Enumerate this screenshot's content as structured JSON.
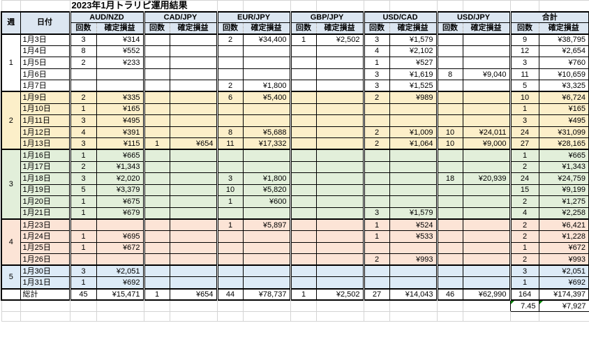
{
  "title": "2023年1月トラリピ運用結果",
  "columns": {
    "week": "週",
    "date": "日付",
    "count": "回数",
    "profit": "確定損益",
    "total": "合計",
    "pairs": [
      "AUD/NZD",
      "CAD/JPY",
      "EUR/JPY",
      "GBP/JPY",
      "USD/CAD",
      "USD/JPY"
    ]
  },
  "colors": {
    "header_fill": "#DCE6F1",
    "gridline": "#D4D4D4",
    "note_triangle": "#008000",
    "week_fills": [
      "#FFFFFF",
      "#FCEFC9",
      "#E2EFDA",
      "#FCE4D6",
      "#DDEBF7"
    ]
  },
  "weeks": [
    {
      "label": "1",
      "color": "#FFFFFF",
      "rows": [
        {
          "date": "1月3日",
          "values": [
            "3",
            "¥314",
            "",
            "",
            "2",
            "¥34,400",
            "1",
            "¥2,502",
            "3",
            "¥1,579",
            "",
            "",
            "9",
            "¥38,795"
          ]
        },
        {
          "date": "1月4日",
          "values": [
            "8",
            "¥552",
            "",
            "",
            "",
            "",
            "",
            "",
            "4",
            "¥2,102",
            "",
            "",
            "12",
            "¥2,654"
          ]
        },
        {
          "date": "1月5日",
          "values": [
            "2",
            "¥233",
            "",
            "",
            "",
            "",
            "",
            "",
            "1",
            "¥527",
            "",
            "",
            "3",
            "¥760"
          ]
        },
        {
          "date": "1月6日",
          "values": [
            "",
            "",
            "",
            "",
            "",
            "",
            "",
            "",
            "3",
            "¥1,619",
            "8",
            "¥9,040",
            "11",
            "¥10,659"
          ]
        },
        {
          "date": "1月7日",
          "values": [
            "",
            "",
            "",
            "",
            "2",
            "¥1,800",
            "",
            "",
            "3",
            "¥1,525",
            "",
            "",
            "5",
            "¥3,325"
          ]
        }
      ]
    },
    {
      "label": "2",
      "color": "#FCEFC9",
      "rows": [
        {
          "date": "1月9日",
          "values": [
            "2",
            "¥335",
            "",
            "",
            "6",
            "¥5,400",
            "",
            "",
            "2",
            "¥989",
            "",
            "",
            "10",
            "¥6,724"
          ]
        },
        {
          "date": "1月10日",
          "values": [
            "1",
            "¥165",
            "",
            "",
            "",
            "",
            "",
            "",
            "",
            "",
            "",
            "",
            "1",
            "¥165"
          ]
        },
        {
          "date": "1月11日",
          "values": [
            "3",
            "¥495",
            "",
            "",
            "",
            "",
            "",
            "",
            "",
            "",
            "",
            "",
            "3",
            "¥495"
          ]
        },
        {
          "date": "1月12日",
          "values": [
            "4",
            "¥391",
            "",
            "",
            "8",
            "¥5,688",
            "",
            "",
            "2",
            "¥1,009",
            "10",
            "¥24,011",
            "24",
            "¥31,099"
          ]
        },
        {
          "date": "1月13日",
          "values": [
            "3",
            "¥115",
            "1",
            "¥654",
            "11",
            "¥17,332",
            "",
            "",
            "2",
            "¥1,064",
            "10",
            "¥9,000",
            "27",
            "¥28,165"
          ]
        }
      ]
    },
    {
      "label": "3",
      "color": "#E2EFDA",
      "rows": [
        {
          "date": "1月16日",
          "values": [
            "1",
            "¥665",
            "",
            "",
            "",
            "",
            "",
            "",
            "",
            "",
            "",
            "",
            "1",
            "¥665"
          ]
        },
        {
          "date": "1月17日",
          "values": [
            "2",
            "¥1,343",
            "",
            "",
            "",
            "",
            "",
            "",
            "",
            "",
            "",
            "",
            "2",
            "¥1,343"
          ]
        },
        {
          "date": "1月18日",
          "values": [
            "3",
            "¥2,020",
            "",
            "",
            "3",
            "¥1,800",
            "",
            "",
            "",
            "",
            "18",
            "¥20,939",
            "24",
            "¥24,759"
          ]
        },
        {
          "date": "1月19日",
          "values": [
            "5",
            "¥3,379",
            "",
            "",
            "10",
            "¥5,820",
            "",
            "",
            "",
            "",
            "",
            "",
            "15",
            "¥9,199"
          ]
        },
        {
          "date": "1月20日",
          "values": [
            "1",
            "¥675",
            "",
            "",
            "1",
            "¥600",
            "",
            "",
            "",
            "",
            "",
            "",
            "2",
            "¥1,275"
          ]
        },
        {
          "date": "1月21日",
          "values": [
            "1",
            "¥679",
            "",
            "",
            "",
            "",
            "",
            "",
            "3",
            "¥1,579",
            "",
            "",
            "4",
            "¥2,258"
          ]
        }
      ]
    },
    {
      "label": "4",
      "color": "#FCE4D6",
      "rows": [
        {
          "date": "1月23日",
          "values": [
            "",
            "",
            "",
            "",
            "1",
            "¥5,897",
            "",
            "",
            "1",
            "¥524",
            "",
            "",
            "2",
            "¥6,421"
          ]
        },
        {
          "date": "1月24日",
          "values": [
            "1",
            "¥695",
            "",
            "",
            "",
            "",
            "",
            "",
            "1",
            "¥533",
            "",
            "",
            "2",
            "¥1,228"
          ]
        },
        {
          "date": "1月25日",
          "values": [
            "1",
            "¥672",
            "",
            "",
            "",
            "",
            "",
            "",
            "",
            "",
            "",
            "",
            "1",
            "¥672"
          ]
        },
        {
          "date": "1月26日",
          "values": [
            "",
            "",
            "",
            "",
            "",
            "",
            "",
            "",
            "2",
            "¥993",
            "",
            "",
            "2",
            "¥993"
          ]
        }
      ]
    },
    {
      "label": "5",
      "color": "#DDEBF7",
      "rows": [
        {
          "date": "1月30日",
          "values": [
            "3",
            "¥2,051",
            "",
            "",
            "",
            "",
            "",
            "",
            "",
            "",
            "",
            "",
            "3",
            "¥2,051"
          ]
        },
        {
          "date": "1月31日",
          "values": [
            "1",
            "¥692",
            "",
            "",
            "",
            "",
            "",
            "",
            "",
            "",
            "",
            "",
            "1",
            "¥692"
          ]
        }
      ]
    }
  ],
  "grand_total": {
    "label": "総計",
    "values": [
      "45",
      "¥15,471",
      "1",
      "¥654",
      "44",
      "¥78,737",
      "1",
      "¥2,502",
      "27",
      "¥14,043",
      "46",
      "¥62,990",
      "164",
      "¥174,397"
    ]
  },
  "average_row": {
    "count": "7.45",
    "profit": "¥7,927"
  }
}
